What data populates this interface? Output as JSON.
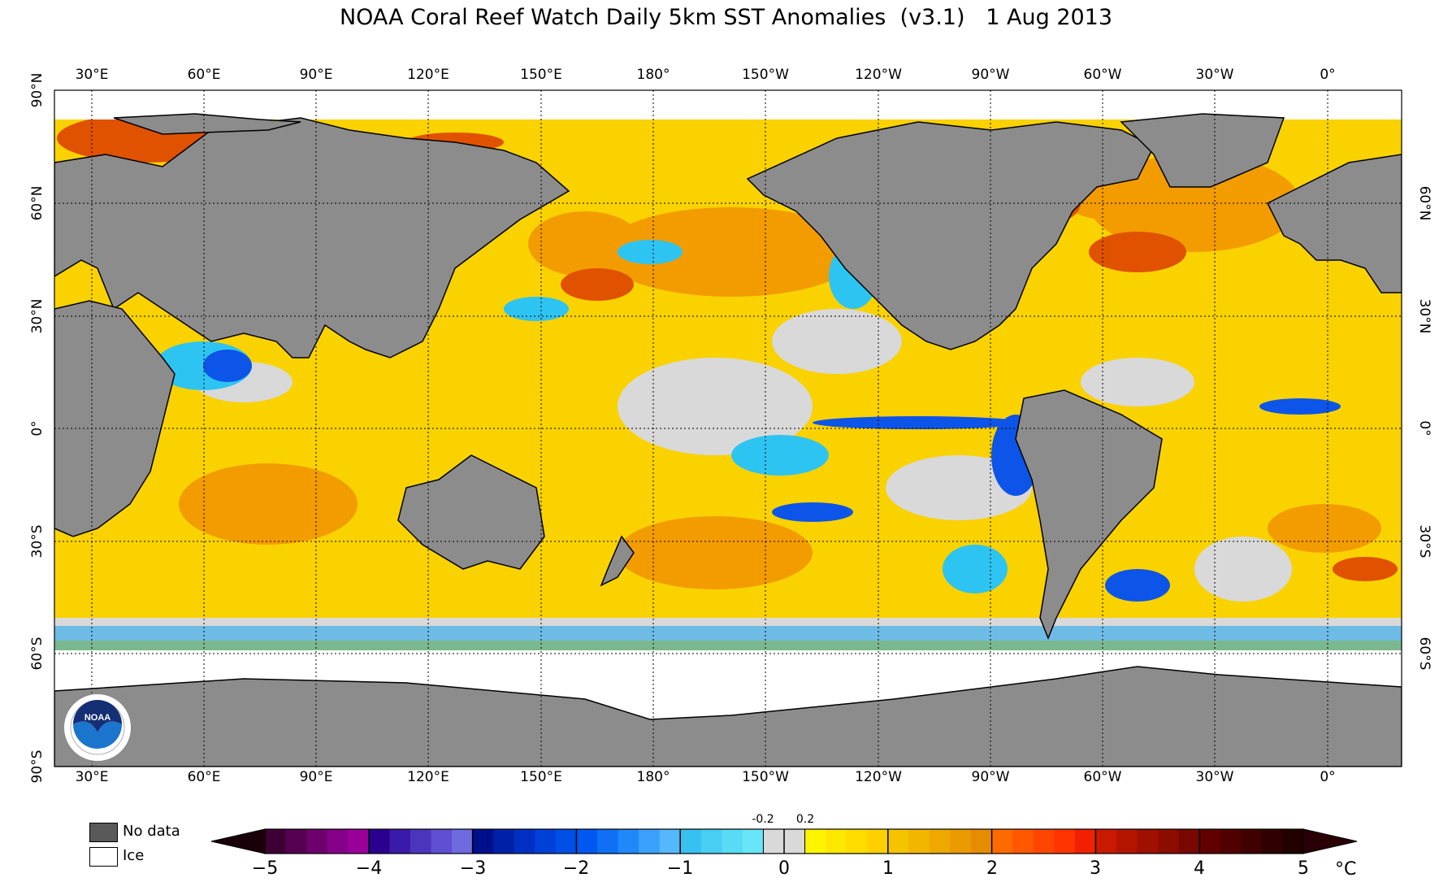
{
  "title": "NOAA Coral Reef Watch Daily 5km SST Anomalies  (v3.1)   1 Aug 2013",
  "lon_labels": [
    "30°E",
    "60°E",
    "90°E",
    "120°E",
    "150°E",
    "180°",
    "150°W",
    "120°W",
    "90°W",
    "60°W",
    "30°W",
    "0°"
  ],
  "lat_labels_left": [
    "90°N",
    "60°N",
    "30°N",
    "0°",
    "30°S",
    "60°S",
    "90°S"
  ],
  "lat_labels_right": [
    "60°N",
    "30°N",
    "0°",
    "30°S",
    "60°S"
  ],
  "legend": {
    "no_data": "No data",
    "ice": "Ice"
  },
  "colorbar": {
    "ticks": [
      "−5",
      "−4",
      "−3",
      "−2",
      "−1",
      "0",
      "1",
      "2",
      "3",
      "4",
      "5"
    ],
    "small_ticks": [
      "-0.2",
      "0.2"
    ],
    "unit": "°C",
    "colors": {
      "land": "#8c8c8c",
      "ocean_neutral": "#d9d9d9",
      "warm_1": "#fff200",
      "warm_2": "#f5b800",
      "warm_3": "#f07a00",
      "warm_4": "#d41c00",
      "cool_1": "#2ec4f2",
      "cool_2": "#0c55e8"
    }
  },
  "logo": {
    "text": "NOAA"
  }
}
